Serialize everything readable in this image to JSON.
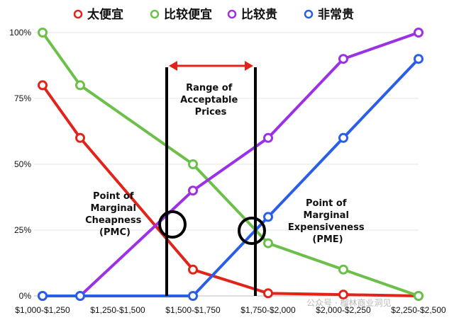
{
  "chart_data": {
    "type": "line",
    "categories": [
      "$1,000-$1,250",
      "$1,250-$1,500",
      "$1,500-$1,750",
      "$1,750-$2,000",
      "$2,000-$2,250",
      "$2,250-$2,500"
    ],
    "y_ticks": [
      "0%",
      "25%",
      "50%",
      "75%",
      "100%"
    ],
    "ylim": [
      0,
      100
    ],
    "y_unit": "%",
    "grid": true,
    "legend_position": "top",
    "series": [
      {
        "name": "太便宜",
        "color": "#e2231a",
        "values": [
          80,
          60,
          10,
          1,
          0.5,
          0
        ]
      },
      {
        "name": "比较便宜",
        "color": "#6cc04a",
        "values": [
          100,
          80,
          50,
          20,
          10,
          0
        ]
      },
      {
        "name": "比较贵",
        "color": "#9b30e6",
        "values": [
          0,
          0,
          40,
          60,
          90,
          100
        ]
      },
      {
        "name": "非常贵",
        "color": "#2a5ee8",
        "values": [
          0,
          0,
          0,
          30,
          60,
          90
        ]
      }
    ],
    "points_x": [
      0,
      0.5,
      2,
      3,
      4,
      5
    ],
    "annotations": {
      "range_label": [
        "Range of",
        "Acceptable",
        "Prices"
      ],
      "pmc_label": [
        "Point of",
        "Marginal",
        "Cheapness",
        "(PMC)"
      ],
      "pme_label": [
        "Point of",
        "Marginal",
        "Expensiveness",
        "(PME)"
      ],
      "range_arrow_color": "#e2231a"
    },
    "watermark": "公众号 · 榴林商业洞见"
  }
}
